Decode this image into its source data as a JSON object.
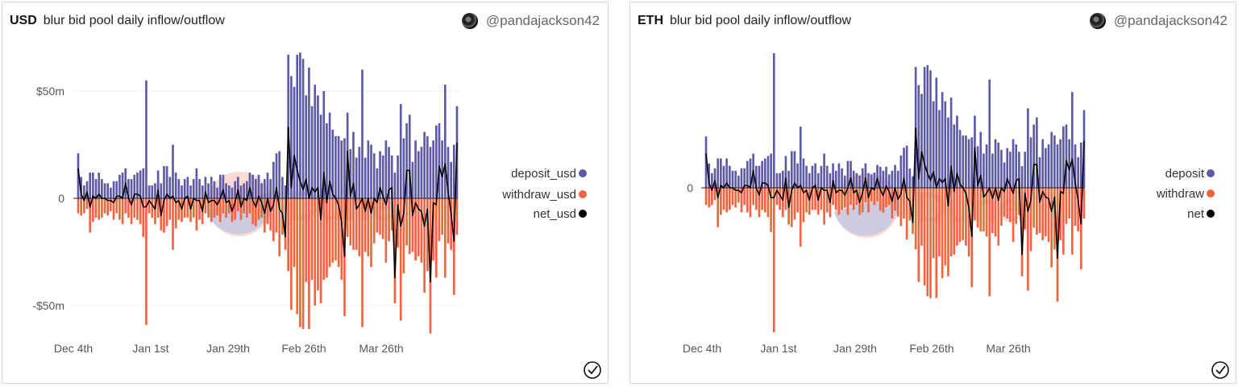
{
  "colors": {
    "deposit": "#5c5aa6",
    "withdraw": "#f2643f",
    "net": "#000000"
  },
  "watermark": "Dune",
  "chart_data": [
    {
      "type": "bar",
      "currency": "USD",
      "title": "blur bid pool daily inflow/outflow",
      "author": "@pandajackson42",
      "y_ticks": [
        "$50m",
        "0",
        "-$50m"
      ],
      "y_tick_values": [
        50,
        0,
        -50
      ],
      "x_ticks": [
        "Dec 4th",
        "Jan 1st",
        "Jan 29th",
        "Feb 26th",
        "Mar 26th"
      ],
      "unit": "million USD",
      "legend_position": "right",
      "grid": true,
      "series": [
        {
          "name": "deposit_usd",
          "type": "bar",
          "values": [
            21,
            10,
            6,
            8,
            12,
            12,
            9,
            12,
            9,
            7,
            7,
            5,
            8,
            8,
            11,
            12,
            14,
            9,
            9,
            11,
            12,
            13,
            14,
            55,
            6,
            6,
            7,
            13,
            7,
            15,
            15,
            10,
            25,
            12,
            9,
            6,
            9,
            10,
            6,
            9,
            14,
            9,
            6,
            10,
            7,
            10,
            8,
            5,
            11,
            11,
            7,
            6,
            5,
            8,
            10,
            6,
            7,
            8,
            12,
            11,
            9,
            11,
            7,
            9,
            12,
            9,
            17,
            21,
            22,
            10,
            6,
            67,
            57,
            52,
            67,
            68,
            65,
            48,
            61,
            43,
            53,
            48,
            39,
            50,
            35,
            40,
            32,
            29,
            29,
            27,
            28,
            40,
            23,
            31,
            19,
            24,
            60,
            19,
            27,
            25,
            21,
            14,
            22,
            20,
            27,
            24,
            20,
            12,
            20,
            44,
            28,
            35,
            39,
            17,
            27,
            22,
            24,
            31,
            29,
            24,
            27,
            34,
            35,
            27,
            53,
            24,
            17,
            25,
            43
          ]
        },
        {
          "name": "withdraw_usd",
          "type": "bar",
          "values": [
            -7,
            -8,
            -7,
            -5,
            -16,
            -11,
            -9,
            -10,
            -9,
            -7,
            -8,
            -6,
            -10,
            -7,
            -10,
            -12,
            -7,
            -9,
            -12,
            -9,
            -10,
            -12,
            -18,
            -59,
            -7,
            -9,
            -12,
            -9,
            -15,
            -16,
            -13,
            -10,
            -24,
            -14,
            -10,
            -11,
            -9,
            -9,
            -11,
            -9,
            -15,
            -10,
            -12,
            -7,
            -9,
            -11,
            -9,
            -8,
            -11,
            -7,
            -9,
            -7,
            -11,
            -10,
            -6,
            -10,
            -7,
            -9,
            -7,
            -12,
            -13,
            -10,
            -9,
            -16,
            -12,
            -15,
            -20,
            -16,
            -27,
            -17,
            -24,
            -34,
            -52,
            -32,
            -54,
            -60,
            -61,
            -39,
            -61,
            -38,
            -50,
            -43,
            -49,
            -38,
            -37,
            -32,
            -30,
            -29,
            -32,
            -38,
            -55,
            -18,
            -22,
            -24,
            -24,
            -27,
            -60,
            -25,
            -27,
            -32,
            -21,
            -16,
            -17,
            -19,
            -30,
            -20,
            -15,
            -49,
            -23,
            -57,
            -35,
            -22,
            -26,
            -25,
            -29,
            -27,
            -30,
            -44,
            -34,
            -63,
            -29,
            -37,
            -20,
            -17,
            -37,
            -21,
            -24,
            -45,
            -17
          ]
        },
        {
          "name": "net_usd",
          "type": "line",
          "values": [
            14,
            2,
            -1,
            3,
            -4,
            1,
            0,
            2,
            0,
            0,
            -1,
            -1,
            -2,
            1,
            1,
            0,
            7,
            0,
            -3,
            2,
            2,
            1,
            -4,
            -4,
            -1,
            -3,
            -5,
            4,
            -8,
            -1,
            2,
            0,
            1,
            -2,
            -1,
            -5,
            0,
            1,
            -5,
            0,
            -1,
            -1,
            -6,
            3,
            -2,
            -1,
            -1,
            -3,
            0,
            4,
            -2,
            -1,
            -6,
            -2,
            4,
            -4,
            0,
            -1,
            5,
            -1,
            -4,
            1,
            -2,
            -7,
            0,
            -6,
            -3,
            5,
            -5,
            -7,
            -18,
            33,
            5,
            20,
            13,
            8,
            4,
            9,
            0,
            5,
            3,
            5,
            -10,
            12,
            -2,
            8,
            2,
            0,
            -3,
            -11,
            -27,
            22,
            1,
            7,
            -5,
            -3,
            0,
            -6,
            0,
            -7,
            0,
            -2,
            5,
            1,
            -3,
            4,
            5,
            -37,
            -3,
            -13,
            -7,
            13,
            13,
            -8,
            -2,
            -5,
            -6,
            -13,
            -5,
            -39,
            -2,
            -3,
            15,
            10,
            16,
            3,
            -7,
            -20,
            26
          ]
        }
      ]
    },
    {
      "type": "bar",
      "currency": "ETH",
      "title": "blur bid pool daily inflow/outflow",
      "author": "@pandajackson42",
      "y_ticks": [
        "0"
      ],
      "y_tick_values": [
        0
      ],
      "x_ticks": [
        "Dec 4th",
        "Jan 1st",
        "Jan 29th",
        "Feb 26th",
        "Mar 26th"
      ],
      "unit": "ETH",
      "legend_position": "right",
      "grid": false,
      "series": [
        {
          "name": "deposit",
          "type": "bar",
          "values": [
            16800,
            8000,
            4800,
            6400,
            9600,
            9600,
            7200,
            9600,
            7200,
            5600,
            5600,
            4000,
            6400,
            6400,
            8800,
            9600,
            11200,
            7200,
            7200,
            8800,
            9600,
            10400,
            11200,
            44000,
            4800,
            4800,
            5600,
            10400,
            5600,
            12000,
            12000,
            8000,
            20000,
            9600,
            7200,
            4800,
            7200,
            8000,
            4800,
            7200,
            11200,
            7200,
            4800,
            8000,
            5600,
            8000,
            6400,
            4000,
            8800,
            8800,
            5600,
            4800,
            4000,
            6400,
            8000,
            4800,
            4400,
            5000,
            7500,
            6900,
            5600,
            6900,
            4400,
            5600,
            7500,
            5600,
            10600,
            13100,
            13800,
            6300,
            3800,
            39500,
            33600,
            30700,
            39500,
            40100,
            38400,
            28300,
            36000,
            25400,
            31300,
            28300,
            23000,
            29500,
            20700,
            23600,
            18900,
            17100,
            17100,
            15900,
            16500,
            23600,
            13600,
            18300,
            11200,
            14200,
            35400,
            11200,
            15900,
            14800,
            12400,
            8300,
            13000,
            11800,
            15900,
            14200,
            11800,
            7100,
            11800,
            26000,
            16500,
            20700,
            23000,
            10000,
            15900,
            13000,
            14200,
            18300,
            17100,
            14200,
            15900,
            20100,
            20700,
            15900,
            31300,
            14200,
            10000,
            14800,
            25400
          ]
        },
        {
          "name": "withdraw",
          "type": "bar",
          "values": [
            -5600,
            -6400,
            -5600,
            -4000,
            -12800,
            -8800,
            -7200,
            -8000,
            -7200,
            -5600,
            -6400,
            -4800,
            -8000,
            -5600,
            -8000,
            -9600,
            -5600,
            -7200,
            -9600,
            -7200,
            -8000,
            -9600,
            -14400,
            -47200,
            -5600,
            -7200,
            -9600,
            -7200,
            -12000,
            -12800,
            -10400,
            -8000,
            -19200,
            -11200,
            -8000,
            -8800,
            -7200,
            -7200,
            -8800,
            -7200,
            -12000,
            -8000,
            -9600,
            -5600,
            -7200,
            -8800,
            -7200,
            -6400,
            -8800,
            -5600,
            -7200,
            -5600,
            -8800,
            -8000,
            -4800,
            -8000,
            -4400,
            -5600,
            -4400,
            -7500,
            -8100,
            -6300,
            -5600,
            -10000,
            -7500,
            -9400,
            -12500,
            -10000,
            -16900,
            -10600,
            -15000,
            -20100,
            -30700,
            -18900,
            -31900,
            -35400,
            -36000,
            -23000,
            -36000,
            -22400,
            -29500,
            -25400,
            -28900,
            -22400,
            -21800,
            -18900,
            -17700,
            -17100,
            -18900,
            -22400,
            -32500,
            -10600,
            -13000,
            -14200,
            -14200,
            -15900,
            -35400,
            -14800,
            -15900,
            -18900,
            -12400,
            -9400,
            -10000,
            -11200,
            -17700,
            -11800,
            -8900,
            -28900,
            -13600,
            -33600,
            -20700,
            -13000,
            -15300,
            -14800,
            -17100,
            -15900,
            -17700,
            -26000,
            -20100,
            -37200,
            -17100,
            -21800,
            -11800,
            -10000,
            -21800,
            -12400,
            -14200,
            -26600,
            -10000
          ]
        },
        {
          "name": "net",
          "type": "line",
          "values": [
            11200,
            1600,
            -800,
            2400,
            -3200,
            800,
            0,
            1600,
            0,
            0,
            -800,
            -800,
            -1600,
            800,
            800,
            0,
            5600,
            0,
            -2400,
            1600,
            1600,
            800,
            -3200,
            -3200,
            -800,
            -2400,
            -4000,
            3200,
            -6400,
            -800,
            1600,
            0,
            800,
            -1600,
            -800,
            -4000,
            0,
            800,
            -4000,
            0,
            -800,
            -800,
            -4800,
            2400,
            -1600,
            -800,
            -800,
            -2400,
            0,
            3200,
            -1600,
            -800,
            -4800,
            -1600,
            3200,
            -3200,
            0,
            -600,
            3100,
            -600,
            -2500,
            600,
            -1200,
            -4400,
            0,
            -3800,
            -1900,
            3100,
            -3100,
            -4400,
            -11300,
            19500,
            3000,
            11800,
            7700,
            4700,
            2400,
            5300,
            0,
            3000,
            1800,
            3000,
            -5900,
            7100,
            -1200,
            4700,
            1200,
            0,
            -1800,
            -6500,
            -15900,
            13000,
            600,
            4100,
            -3000,
            -1800,
            0,
            -3500,
            0,
            -4100,
            0,
            -1200,
            3000,
            600,
            -1800,
            2400,
            3000,
            -21800,
            -1800,
            -7700,
            -4100,
            7700,
            7700,
            -4700,
            -1200,
            -3000,
            -3500,
            -7700,
            -3000,
            -23000,
            -1200,
            -1800,
            8900,
            5900,
            9400,
            1800,
            -4100,
            -11800,
            15300
          ]
        }
      ]
    }
  ]
}
